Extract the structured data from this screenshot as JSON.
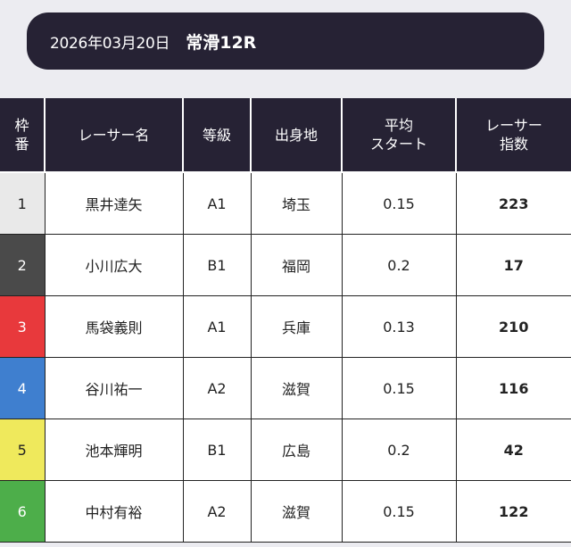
{
  "header": {
    "date": "2026年03月20日",
    "race": "常滑12R"
  },
  "columns": {
    "frame": [
      "枠",
      "番"
    ],
    "name": "レーサー名",
    "grade": "等級",
    "hometown": "出身地",
    "avg_start": [
      "平均",
      "スタート"
    ],
    "score": [
      "レーサー",
      "指数"
    ]
  },
  "rows": [
    {
      "frame": "1",
      "frame_bg": "#e9e9e9",
      "frame_fg": "#222222",
      "name": "黒井達矢",
      "grade": "A1",
      "hometown": "埼玉",
      "avg_start": "0.15",
      "score": "223"
    },
    {
      "frame": "2",
      "frame_bg": "#4a4a4a",
      "frame_fg": "#ffffff",
      "name": "小川広大",
      "grade": "B1",
      "hometown": "福岡",
      "avg_start": "0.2",
      "score": "17"
    },
    {
      "frame": "3",
      "frame_bg": "#e8393c",
      "frame_fg": "#ffffff",
      "name": "馬袋義則",
      "grade": "A1",
      "hometown": "兵庫",
      "avg_start": "0.13",
      "score": "210"
    },
    {
      "frame": "4",
      "frame_bg": "#3f7fcf",
      "frame_fg": "#ffffff",
      "name": "谷川祐一",
      "grade": "A2",
      "hometown": "滋賀",
      "avg_start": "0.15",
      "score": "116"
    },
    {
      "frame": "5",
      "frame_bg": "#efe95c",
      "frame_fg": "#222222",
      "name": "池本輝明",
      "grade": "B1",
      "hometown": "広島",
      "avg_start": "0.2",
      "score": "42"
    },
    {
      "frame": "6",
      "frame_bg": "#4dae4a",
      "frame_fg": "#ffffff",
      "name": "中村有裕",
      "grade": "A2",
      "hometown": "滋賀",
      "avg_start": "0.15",
      "score": "122"
    }
  ]
}
